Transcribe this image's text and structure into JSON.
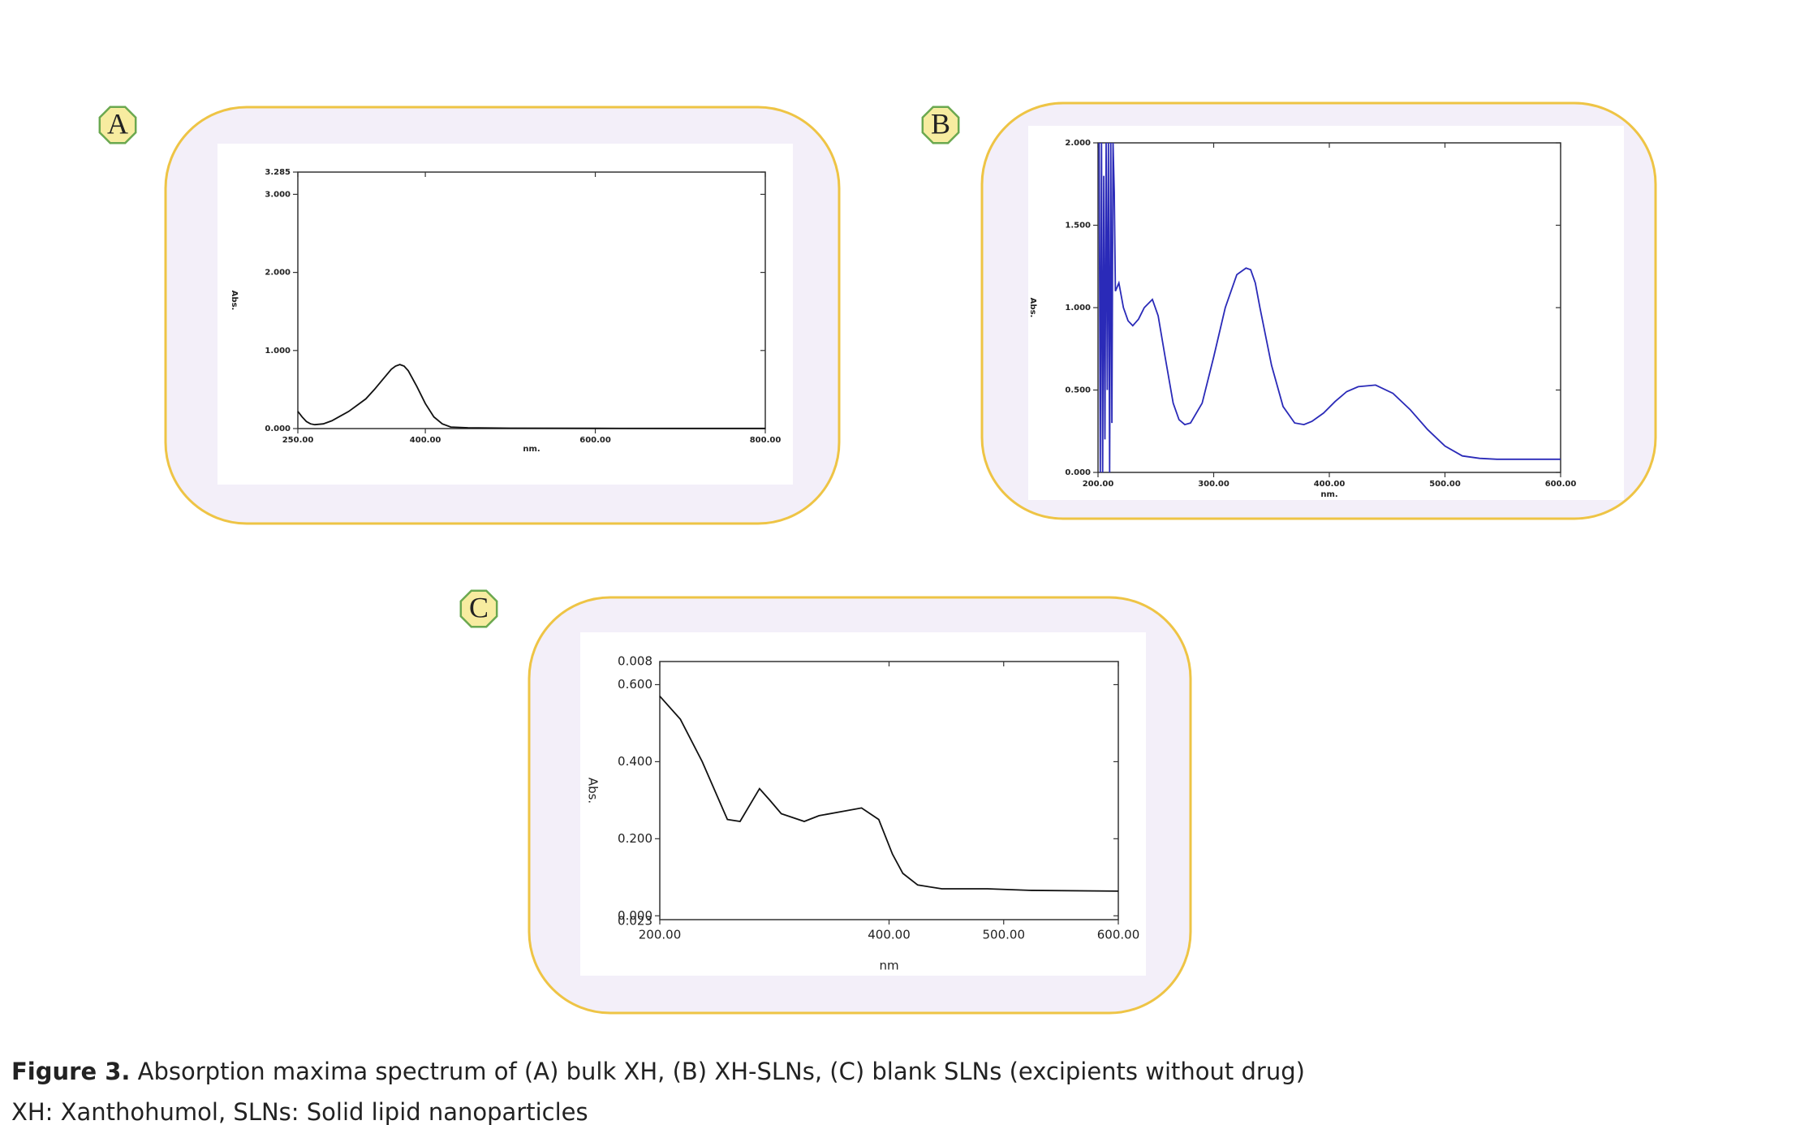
{
  "chart_data": [
    {
      "type": "line",
      "panel": "A",
      "ylabel": "Abs.",
      "xlabel": "nm.",
      "xlim": [
        250,
        800
      ],
      "xticks": [
        {
          "value": 250,
          "label": "250.00"
        },
        {
          "value": 400,
          "label": "400.00"
        },
        {
          "value": 600,
          "label": "600.00"
        },
        {
          "value": 800,
          "label": "800.00"
        }
      ],
      "ylim": [
        0,
        3.285
      ],
      "yticks": [
        {
          "value": 0,
          "label": "0.000"
        },
        {
          "value": 1,
          "label": "1.000"
        },
        {
          "value": 2,
          "label": "2.000"
        },
        {
          "value": 3,
          "label": "3.000"
        },
        {
          "value": 3.285,
          "label": "3.285"
        }
      ],
      "color": "#111111",
      "x": [
        250,
        255,
        260,
        265,
        270,
        280,
        290,
        300,
        310,
        320,
        330,
        340,
        350,
        360,
        365,
        370,
        375,
        380,
        390,
        400,
        410,
        420,
        430,
        450,
        500,
        600,
        700,
        800
      ],
      "values": [
        0.22,
        0.15,
        0.09,
        0.06,
        0.05,
        0.06,
        0.1,
        0.16,
        0.22,
        0.3,
        0.38,
        0.5,
        0.63,
        0.76,
        0.8,
        0.82,
        0.8,
        0.74,
        0.54,
        0.32,
        0.15,
        0.06,
        0.02,
        0.01,
        0.005,
        0.003,
        0.002,
        0.002
      ]
    },
    {
      "type": "line",
      "panel": "B",
      "ylabel": "Abs.",
      "xlabel": "nm.",
      "xlim": [
        200,
        600
      ],
      "xticks": [
        {
          "value": 200,
          "label": "200.00"
        },
        {
          "value": 300,
          "label": "300.00"
        },
        {
          "value": 400,
          "label": "400.00"
        },
        {
          "value": 500,
          "label": "500.00"
        },
        {
          "value": 600,
          "label": "600.00"
        }
      ],
      "ylim": [
        0,
        2
      ],
      "yticks": [
        {
          "value": 0,
          "label": "0.000"
        },
        {
          "value": 0.5,
          "label": "0.500"
        },
        {
          "value": 1,
          "label": "1.000"
        },
        {
          "value": 1.5,
          "label": "1.500"
        },
        {
          "value": 2,
          "label": "2.000"
        }
      ],
      "color": "#2a2ab8",
      "x": [
        201,
        202,
        203,
        204,
        205,
        206,
        207,
        208,
        209,
        210,
        211,
        212,
        213,
        214,
        215,
        218,
        222,
        226,
        230,
        235,
        240,
        247,
        252,
        258,
        265,
        270,
        275,
        280,
        290,
        300,
        310,
        320,
        328,
        332,
        336,
        340,
        350,
        360,
        370,
        378,
        385,
        395,
        405,
        415,
        425,
        440,
        455,
        470,
        485,
        500,
        515,
        530,
        545,
        555,
        570,
        600
      ],
      "values": [
        2,
        0,
        2,
        0,
        1.8,
        0.2,
        2,
        0.5,
        2,
        0,
        2,
        0.3,
        2,
        1.7,
        1.1,
        1.15,
        1.0,
        0.92,
        0.89,
        0.93,
        1.0,
        1.05,
        0.95,
        0.7,
        0.42,
        0.32,
        0.29,
        0.3,
        0.42,
        0.7,
        1.0,
        1.2,
        1.24,
        1.23,
        1.15,
        1.0,
        0.65,
        0.4,
        0.3,
        0.29,
        0.31,
        0.36,
        0.43,
        0.49,
        0.52,
        0.53,
        0.48,
        0.38,
        0.26,
        0.16,
        0.1,
        0.085,
        0.08,
        0.08,
        0.08,
        0.08
      ]
    },
    {
      "type": "line",
      "panel": "C",
      "ylabel": "Abs.",
      "xlabel": "nm",
      "xlim": [
        200,
        600
      ],
      "xticks": [
        {
          "value": 200,
          "label": "200.00"
        },
        {
          "value": 400,
          "label": "400.00"
        },
        {
          "value": 500,
          "label": "500.00"
        },
        {
          "value": 600,
          "label": "600.00"
        }
      ],
      "ylim": [
        -0.01,
        0.66
      ],
      "ylim_labels": [
        "0.023",
        "0.008"
      ],
      "yticks": [
        {
          "value": 0,
          "label": "0.000"
        },
        {
          "value": 0.2,
          "label": "0.200"
        },
        {
          "value": 0.4,
          "label": "0.400"
        },
        {
          "value": 0.6,
          "label": "0.600"
        }
      ],
      "color": "#111111",
      "x": [
        200,
        218,
        237,
        259,
        270,
        287,
        296,
        306,
        326,
        339,
        376,
        391,
        403,
        412,
        425,
        446,
        486,
        522,
        600
      ],
      "values": [
        0.57,
        0.51,
        0.4,
        0.25,
        0.245,
        0.33,
        0.3,
        0.265,
        0.245,
        0.26,
        0.28,
        0.25,
        0.16,
        0.11,
        0.08,
        0.07,
        0.07,
        0.066,
        0.064
      ]
    }
  ],
  "caption": {
    "label": "Figure 3.",
    "text": " Absorption maxima spectrum of (A) bulk XH, (B) XH-SLNs, (C) blank SLNs (excipients without drug)",
    "note": "XH: Xanthohumol, SLNs: Solid lipid nanoparticles"
  }
}
